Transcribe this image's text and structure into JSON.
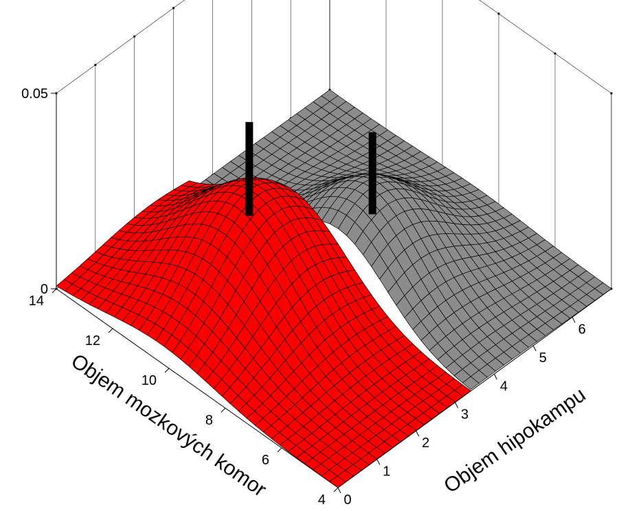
{
  "chart_data": {
    "type": "surface",
    "title": "",
    "zlabel": "",
    "xlabel": "Objem hipokampu",
    "ylabel": "Objem mozkových komor",
    "x_ticks": [
      "0",
      "1",
      "2",
      "3",
      "4",
      "5",
      "6"
    ],
    "y_ticks": [
      "4",
      "6",
      "8",
      "10",
      "12",
      "14"
    ],
    "z_ticks": [
      "0",
      "0.05"
    ],
    "xlim": [
      0,
      7
    ],
    "ylim": [
      4,
      14
    ],
    "zlim": [
      0,
      0.05
    ],
    "grid": true,
    "series": [
      {
        "color": "#ff0000",
        "surface": "density",
        "x_range": [
          0,
          3.4
        ],
        "peak": {
          "x": 2.4,
          "y": 10.3,
          "z": 0.026
        },
        "spread": {
          "x": 1.3,
          "y": 1.9
        }
      },
      {
        "color": "#8c8c8c",
        "surface": "density",
        "x_range": [
          3.4,
          7
        ],
        "peak": {
          "x": 4.2,
          "y": 8.7,
          "z": 0.022
        },
        "spread": {
          "x": 1.2,
          "y": 1.7
        }
      }
    ],
    "markers": [
      {
        "x": 2.2,
        "y": 10.2,
        "z_from": 0.022,
        "z_to": 0.046,
        "color": "#000000"
      },
      {
        "x": 4.2,
        "y": 8.6,
        "z_from": 0.016,
        "z_to": 0.037,
        "color": "#000000"
      }
    ]
  }
}
